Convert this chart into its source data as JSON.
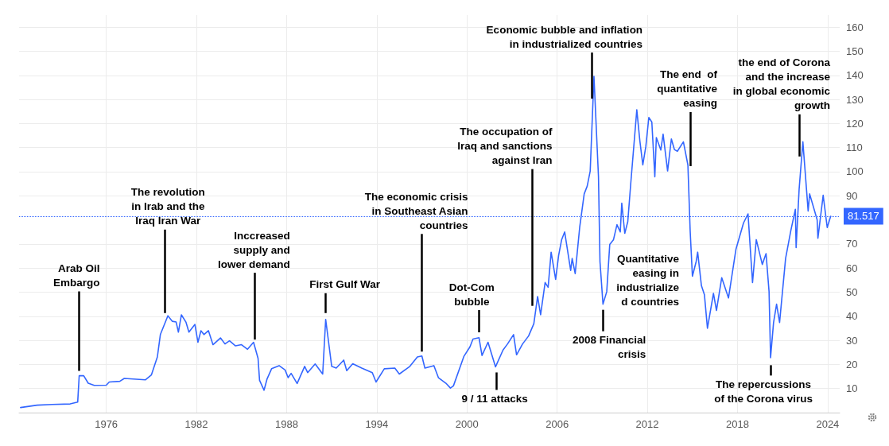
{
  "chart_data": {
    "type": "line",
    "xlim": [
      1970.2,
      2024.8
    ],
    "xticks": [
      1976,
      1982,
      1988,
      1994,
      2000,
      2006,
      2012,
      2018,
      2024
    ],
    "ylim": [
      0,
      165
    ],
    "yticks": [
      10,
      20,
      30,
      40,
      50,
      60,
      70,
      90,
      100,
      110,
      120,
      130,
      140,
      150,
      160
    ],
    "grid": true,
    "marker": "none",
    "line_style": "solid",
    "series": [
      {
        "color": "#3366ff",
        "x": [
          1970.3,
          1971.4,
          1972.4,
          1973.6,
          1974.1,
          1974.2,
          1974.5,
          1974.8,
          1975.2,
          1976.0,
          1976.2,
          1976.9,
          1977.2,
          1978.6,
          1979.0,
          1979.4,
          1979.6,
          1980.1,
          1980.4,
          1980.65,
          1980.8,
          1981.0,
          1981.3,
          1981.5,
          1981.9,
          1982.1,
          1982.3,
          1982.5,
          1982.8,
          1983.1,
          1983.6,
          1983.9,
          1984.2,
          1984.6,
          1985.0,
          1985.4,
          1985.8,
          1986.1,
          1986.2,
          1986.5,
          1986.7,
          1987.0,
          1987.5,
          1987.9,
          1988.1,
          1988.3,
          1988.7,
          1989.2,
          1989.4,
          1989.9,
          1990.4,
          1990.6,
          1991.0,
          1991.3,
          1991.8,
          1992.0,
          1992.4,
          1993.0,
          1993.7,
          1993.95,
          1994.5,
          1995.2,
          1995.5,
          1996.2,
          1996.7,
          1997.0,
          1997.2,
          1997.8,
          1998.1,
          1998.6,
          1998.9,
          1999.1,
          1999.8,
          2000.2,
          2000.4,
          2000.8,
          2001.0,
          2001.4,
          2001.9,
          2002.4,
          2002.7,
          2003.1,
          2003.3,
          2003.7,
          2004.1,
          2004.45,
          2004.7,
          2004.9,
          2005.2,
          2005.4,
          2005.6,
          2005.9,
          2006.1,
          2006.3,
          2006.5,
          2006.9,
          2007.0,
          2007.2,
          2007.5,
          2007.8,
          2008.0,
          2008.2,
          2008.45,
          2008.75,
          2008.85,
          2009.05,
          2009.3,
          2009.5,
          2009.75,
          2009.98,
          2010.2,
          2010.3,
          2010.5,
          2010.7,
          2010.9,
          2011.3,
          2011.5,
          2011.7,
          2011.9,
          2012.1,
          2012.3,
          2012.5,
          2012.6,
          2012.9,
          2013.05,
          2013.35,
          2013.6,
          2013.8,
          2014.0,
          2014.4,
          2014.7,
          2014.85,
          2015.0,
          2015.25,
          2015.35,
          2015.6,
          2015.8,
          2016.0,
          2016.4,
          2016.6,
          2016.95,
          2017.4,
          2017.9,
          2018.4,
          2018.7,
          2019.0,
          2019.25,
          2019.65,
          2019.9,
          2020.1,
          2020.2,
          2020.4,
          2020.6,
          2020.8,
          2021.2,
          2021.55,
          2021.85,
          2021.9,
          2022.1,
          2022.35,
          2022.7,
          2022.8,
          2023.3,
          2023.35,
          2023.7,
          2023.97,
          2024.2
        ],
        "values": [
          2.1,
          3.1,
          3.4,
          3.6,
          4.4,
          15.3,
          15.3,
          12.2,
          11.3,
          11.4,
          12.7,
          13,
          14.2,
          13.6,
          15.6,
          23.1,
          32.4,
          40.2,
          37.9,
          37.6,
          33.4,
          40.6,
          37.6,
          33.4,
          36.6,
          29.2,
          34,
          32.4,
          34,
          28.2,
          31,
          28.5,
          29.8,
          27.7,
          28.2,
          26.3,
          29.2,
          22.5,
          13.4,
          9.3,
          14,
          18.2,
          19.5,
          17.7,
          14.5,
          16.3,
          12.1,
          19.2,
          16.6,
          20.2,
          16,
          38.7,
          19.2,
          18.5,
          21.8,
          17.4,
          20.3,
          18.5,
          16.6,
          12.7,
          18.2,
          18.5,
          16,
          19.2,
          23.1,
          23.5,
          18.5,
          19.5,
          14.5,
          12.2,
          10.2,
          11.1,
          23.4,
          27.3,
          30.5,
          31.1,
          23.7,
          29.2,
          19,
          26,
          28.5,
          32.4,
          24,
          28.5,
          31.8,
          36.9,
          48.2,
          40.6,
          54,
          52,
          66.6,
          55.3,
          65.3,
          71.8,
          75,
          59,
          64,
          57.7,
          76.9,
          90.8,
          94,
          100.3,
          139.6,
          97.9,
          62.7,
          45,
          50.2,
          69.8,
          71.8,
          78,
          75,
          86.9,
          74.4,
          79.3,
          95.3,
          125.7,
          113,
          102.8,
          110.4,
          122.5,
          120.6,
          97.9,
          114.2,
          109,
          115.6,
          100.3,
          113.6,
          109.2,
          108.5,
          112.4,
          102.8,
          75.6,
          56.6,
          62.7,
          66.6,
          52.7,
          48.9,
          35,
          49.5,
          42.4,
          56,
          47.6,
          67.9,
          78.7,
          82.5,
          54,
          71.8,
          61.5,
          66,
          50.2,
          22.8,
          37.4,
          45,
          37.4,
          64,
          75.6,
          84.4,
          68.5,
          92.7,
          112.4,
          83.7,
          90.8,
          80,
          72.4,
          90.2,
          76.8,
          81.5
        ]
      }
    ],
    "ref_lines": [
      {
        "axis": "y",
        "value": 81.517,
        "label": "81.517",
        "color": "#3366ff",
        "line_style": "dotted"
      }
    ],
    "annotations": [
      {
        "text": "Arab Oil\nEmbargo",
        "x": 1974.2,
        "y": 16
      },
      {
        "text": "The revolution\nin Irab and the\nIraq Iran War",
        "x": 1979.9,
        "y": 40
      },
      {
        "text": "Inccreased\nsupply and\nlower demand",
        "x": 1985.9,
        "y": 29
      },
      {
        "text": "First Gulf War",
        "x": 1990.6,
        "y": 40
      },
      {
        "text": "The economic crisis\nin Southeast Asian\ncountries",
        "x": 1997.0,
        "y": 24
      },
      {
        "text": "Dot-Com\nbubble",
        "x": 2000.8,
        "y": 32
      },
      {
        "text": "9 / 11 attacks",
        "x": 2001.95,
        "y": 18
      },
      {
        "text": "The occupation of\nIraq and sanctions\nagainst Iran",
        "x": 2004.35,
        "y": 43
      },
      {
        "text": "Economic bubble and inflation\nin industrialized countries",
        "x": 2008.3,
        "y": 129
      },
      {
        "text": "2008 Financial\ncrisis",
        "x": 2009.05,
        "y": 44
      },
      "Quantitative\neasing in\nindustrialize\nd countries",
      {
        "text": "The end  of\nquantitative\neasing",
        "x": 2014.85,
        "y": 101
      },
      {
        "text": "the end of Corona\nand the increase\nin global economic\ngrowth",
        "x": 2022.1,
        "y": 105
      },
      {
        "text": "The repercussions\nof the Corona virus",
        "x": 2020.2,
        "y": 21
      }
    ]
  }
}
